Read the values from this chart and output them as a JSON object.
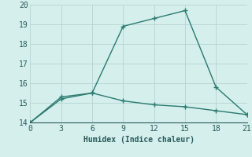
{
  "line1_x": [
    0,
    3,
    6,
    9,
    12,
    15,
    18,
    21
  ],
  "line1_y": [
    14.0,
    15.3,
    15.5,
    18.9,
    19.3,
    19.7,
    15.8,
    14.4
  ],
  "line2_x": [
    0,
    3,
    6,
    9,
    12,
    15,
    18,
    21
  ],
  "line2_y": [
    14.0,
    15.2,
    15.5,
    15.1,
    14.9,
    14.8,
    14.6,
    14.4
  ],
  "line_color": "#2a7a6e",
  "marker": "+",
  "markersize": 5,
  "linewidth": 1.0,
  "markeredgewidth": 1.0,
  "xlabel": "Humidex (Indice chaleur)",
  "xlim": [
    0,
    21
  ],
  "ylim": [
    14,
    20
  ],
  "xticks": [
    0,
    3,
    6,
    9,
    12,
    15,
    18,
    21
  ],
  "yticks": [
    14,
    15,
    16,
    17,
    18,
    19,
    20
  ],
  "bg_color": "#d5efed",
  "grid_color": "#b8d8d5",
  "font_color": "#2a5a58",
  "xlabel_fontsize": 7,
  "tick_fontsize": 7
}
